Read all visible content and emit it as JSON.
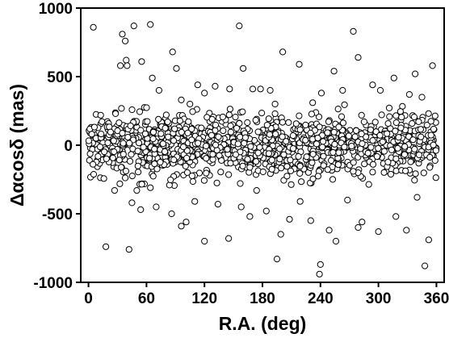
{
  "chart_data": {
    "type": "scatter",
    "title": "",
    "xlabel": "R.A. (deg)",
    "ylabel": "Δαcosδ (mas)",
    "xlim": [
      -8,
      368
    ],
    "ylim": [
      -1000,
      1000
    ],
    "x_ticks": [
      0,
      60,
      120,
      180,
      240,
      300,
      360
    ],
    "y_ticks": [
      1000,
      500,
      0,
      -500,
      -1000
    ],
    "x_tick_labels": [
      "0",
      "60",
      "120",
      "180",
      "240",
      "300",
      "360"
    ],
    "y_tick_labels": [
      "1000",
      "500",
      "0",
      "-500",
      "-1000"
    ],
    "grid": false,
    "marker": "open-circle",
    "series": [
      {
        "outliers": [
          [
            5,
            860
          ],
          [
            28,
            230
          ],
          [
            33,
            580
          ],
          [
            35,
            810
          ],
          [
            38,
            760
          ],
          [
            39,
            620
          ],
          [
            40,
            580
          ],
          [
            47,
            870
          ],
          [
            55,
            610
          ],
          [
            64,
            880
          ],
          [
            66,
            490
          ],
          [
            73,
            400
          ],
          [
            87,
            680
          ],
          [
            91,
            560
          ],
          [
            96,
            330
          ],
          [
            105,
            300
          ],
          [
            113,
            440
          ],
          [
            120,
            380
          ],
          [
            131,
            430
          ],
          [
            146,
            410
          ],
          [
            156,
            870
          ],
          [
            160,
            560
          ],
          [
            170,
            410
          ],
          [
            178,
            410
          ],
          [
            188,
            400
          ],
          [
            193,
            300
          ],
          [
            201,
            680
          ],
          [
            218,
            590
          ],
          [
            232,
            310
          ],
          [
            241,
            380
          ],
          [
            254,
            540
          ],
          [
            263,
            400
          ],
          [
            274,
            830
          ],
          [
            279,
            640
          ],
          [
            294,
            440
          ],
          [
            302,
            400
          ],
          [
            316,
            490
          ],
          [
            332,
            370
          ],
          [
            338,
            520
          ],
          [
            345,
            350
          ],
          [
            356,
            580
          ],
          [
            18,
            -740
          ],
          [
            27,
            -330
          ],
          [
            42,
            -760
          ],
          [
            45,
            -420
          ],
          [
            50,
            -330
          ],
          [
            54,
            -470
          ],
          [
            64,
            -310
          ],
          [
            70,
            -450
          ],
          [
            86,
            -500
          ],
          [
            96,
            -590
          ],
          [
            101,
            -560
          ],
          [
            110,
            -410
          ],
          [
            120,
            -700
          ],
          [
            134,
            -430
          ],
          [
            145,
            -680
          ],
          [
            158,
            -450
          ],
          [
            167,
            -520
          ],
          [
            174,
            -330
          ],
          [
            184,
            -480
          ],
          [
            195,
            -830
          ],
          [
            199,
            -650
          ],
          [
            208,
            -540
          ],
          [
            219,
            -410
          ],
          [
            230,
            -550
          ],
          [
            239,
            -940
          ],
          [
            240,
            -870
          ],
          [
            249,
            -620
          ],
          [
            256,
            -700
          ],
          [
            268,
            -400
          ],
          [
            279,
            -600
          ],
          [
            283,
            -560
          ],
          [
            300,
            -630
          ],
          [
            318,
            -520
          ],
          [
            329,
            -620
          ],
          [
            340,
            -380
          ],
          [
            348,
            -880
          ],
          [
            352,
            -690
          ]
        ],
        "band": {
          "x_start": 0,
          "x_end": 360,
          "count": 1250,
          "y_spread": 300,
          "random_seed": 20240517
        }
      }
    ]
  }
}
